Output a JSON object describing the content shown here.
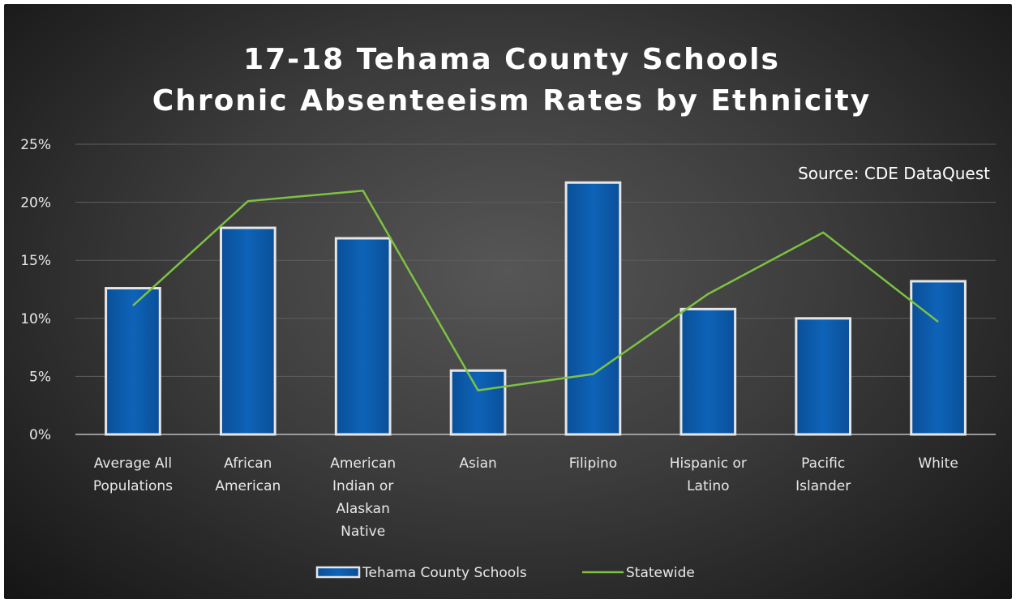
{
  "chart_data": {
    "type": "bar",
    "title_lines": [
      "17-18 Tehama County Schools",
      "Chronic Absenteeism Rates by Ethnicity"
    ],
    "annotation": "Source:  CDE DataQuest",
    "categories": [
      [
        "Average All",
        "Populations"
      ],
      [
        "African",
        "American"
      ],
      [
        "American",
        "Indian or",
        "Alaskan",
        "Native"
      ],
      [
        "Asian"
      ],
      [
        "Filipino"
      ],
      [
        "Hispanic or",
        "Latino"
      ],
      [
        "Pacific",
        "Islander"
      ],
      [
        "White"
      ]
    ],
    "series": [
      {
        "name": "Tehama County Schools",
        "kind": "bar",
        "color": "#0b5cad",
        "values": [
          12.6,
          17.8,
          16.9,
          5.5,
          21.7,
          10.8,
          10.0,
          13.2
        ]
      },
      {
        "name": "Statewide",
        "kind": "line",
        "color": "#7dc242",
        "values": [
          11.1,
          20.1,
          21.0,
          3.8,
          5.2,
          12.1,
          17.4,
          9.7
        ]
      }
    ],
    "y_ticks": [
      "0%",
      "5%",
      "10%",
      "15%",
      "20%",
      "25%"
    ],
    "ylim": [
      0,
      25
    ],
    "y_step": 5,
    "grid": true,
    "legend_position": "bottom"
  }
}
